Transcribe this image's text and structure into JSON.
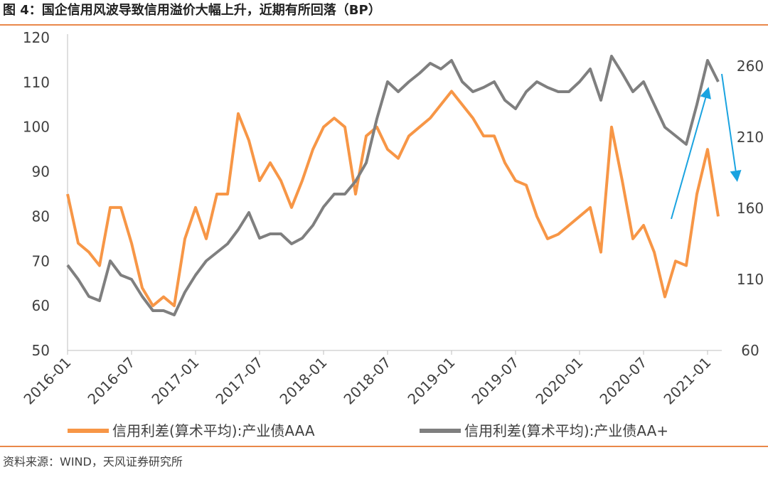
{
  "chart_data": {
    "type": "line",
    "title": "图 4：国企信用风波导致信用溢价大幅上升，近期有所回落（BP）",
    "source": "资料来源：WIND，天风证券研究所",
    "x": [
      "2016-01",
      "2016-02",
      "2016-03",
      "2016-04",
      "2016-05",
      "2016-06",
      "2016-07",
      "2016-08",
      "2016-09",
      "2016-10",
      "2016-11",
      "2016-12",
      "2017-01",
      "2017-02",
      "2017-03",
      "2017-04",
      "2017-05",
      "2017-06",
      "2017-07",
      "2017-08",
      "2017-09",
      "2017-10",
      "2017-11",
      "2017-12",
      "2018-01",
      "2018-02",
      "2018-03",
      "2018-04",
      "2018-05",
      "2018-06",
      "2018-07",
      "2018-08",
      "2018-09",
      "2018-10",
      "2018-11",
      "2018-12",
      "2019-01",
      "2019-02",
      "2019-03",
      "2019-04",
      "2019-05",
      "2019-06",
      "2019-07",
      "2019-08",
      "2019-09",
      "2019-10",
      "2019-11",
      "2019-12",
      "2020-01",
      "2020-02",
      "2020-03",
      "2020-04",
      "2020-05",
      "2020-06",
      "2020-07",
      "2020-08",
      "2020-09",
      "2020-10",
      "2020-11",
      "2020-12",
      "2021-01",
      "2021-02"
    ],
    "xticks": [
      "2016-01",
      "2016-07",
      "2017-01",
      "2017-07",
      "2018-01",
      "2018-07",
      "2019-01",
      "2019-07",
      "2020-01",
      "2020-07",
      "2021-01"
    ],
    "ylim": [
      50,
      120
    ],
    "yticks": [
      50,
      60,
      70,
      80,
      90,
      100,
      110,
      120
    ],
    "y2lim": [
      60,
      280
    ],
    "y2ticks": [
      60,
      110,
      160,
      210,
      260
    ],
    "legend": "bottom",
    "series": [
      {
        "name": "信用利差(算术平均):产业债AAA",
        "color": "#f79646",
        "values": [
          85,
          74,
          72,
          69,
          82,
          82,
          74,
          64,
          60,
          62,
          60,
          75,
          82,
          75,
          85,
          85,
          103,
          97,
          88,
          92,
          88,
          82,
          88,
          95,
          100,
          102,
          100,
          85,
          98,
          100,
          95,
          93,
          98,
          100,
          102,
          105,
          108,
          105,
          102,
          98,
          98,
          92,
          88,
          87,
          80,
          75,
          76,
          78,
          80,
          82,
          72,
          100,
          88,
          75,
          78,
          72,
          62,
          70,
          69,
          85,
          95,
          80
        ]
      },
      {
        "name": "信用利差(算术平均):产业债AA+",
        "color": "#7f7f7f",
        "axis": "y2",
        "values": [
          120,
          110,
          98,
          95,
          123,
          113,
          110,
          98,
          88,
          88,
          85,
          101,
          113,
          123,
          129,
          135,
          145,
          157,
          139,
          142,
          142,
          135,
          139,
          148,
          161,
          170,
          170,
          179,
          192,
          223,
          249,
          242,
          249,
          255,
          262,
          258,
          264,
          249,
          242,
          245,
          249,
          236,
          230,
          242,
          249,
          245,
          242,
          242,
          249,
          258,
          236,
          267,
          255,
          242,
          249,
          233,
          217,
          211,
          205,
          233,
          264,
          249
        ]
      }
    ]
  }
}
